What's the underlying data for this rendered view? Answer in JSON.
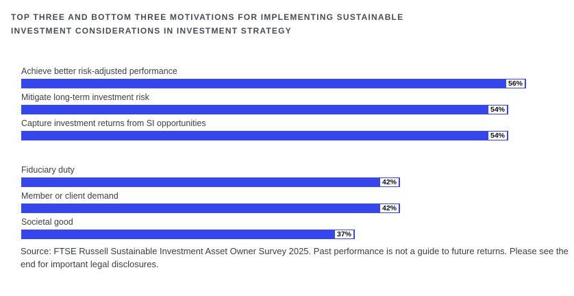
{
  "title": {
    "line1": "TOP THREE AND BOTTOM THREE MOTIVATIONS FOR IMPLEMENTING SUSTAINABLE",
    "line2": "INVESTMENT CONSIDERATIONS IN INVESTMENT STRATEGY"
  },
  "chart_data": {
    "type": "bar",
    "orientation": "horizontal",
    "unit": "%",
    "xlim": [
      0,
      60
    ],
    "bar_color": "#3446ec",
    "value_label_bg": "#ffffff",
    "value_label_color": "#0c0c1e",
    "groups": [
      {
        "name": "top-three",
        "items": [
          {
            "label": "Achieve better risk-adjusted performance",
            "value": 56,
            "value_label": "56%"
          },
          {
            "label": "Mitigate long-term investment risk",
            "value": 54,
            "value_label": "54%"
          },
          {
            "label": "Capture investment returns from SI opportunities",
            "value": 54,
            "value_label": "54%"
          }
        ]
      },
      {
        "name": "bottom-three",
        "items": [
          {
            "label": "Fiduciary duty",
            "value": 42,
            "value_label": "42%"
          },
          {
            "label": "Member or client demand",
            "value": 42,
            "value_label": "42%"
          },
          {
            "label": "Societal good",
            "value": 37,
            "value_label": "37%"
          }
        ]
      }
    ]
  },
  "source": "Source: FTSE Russell Sustainable Investment Asset Owner Survey 2025. Past performance is not a guide to future returns. Please see the end for important legal disclosures."
}
